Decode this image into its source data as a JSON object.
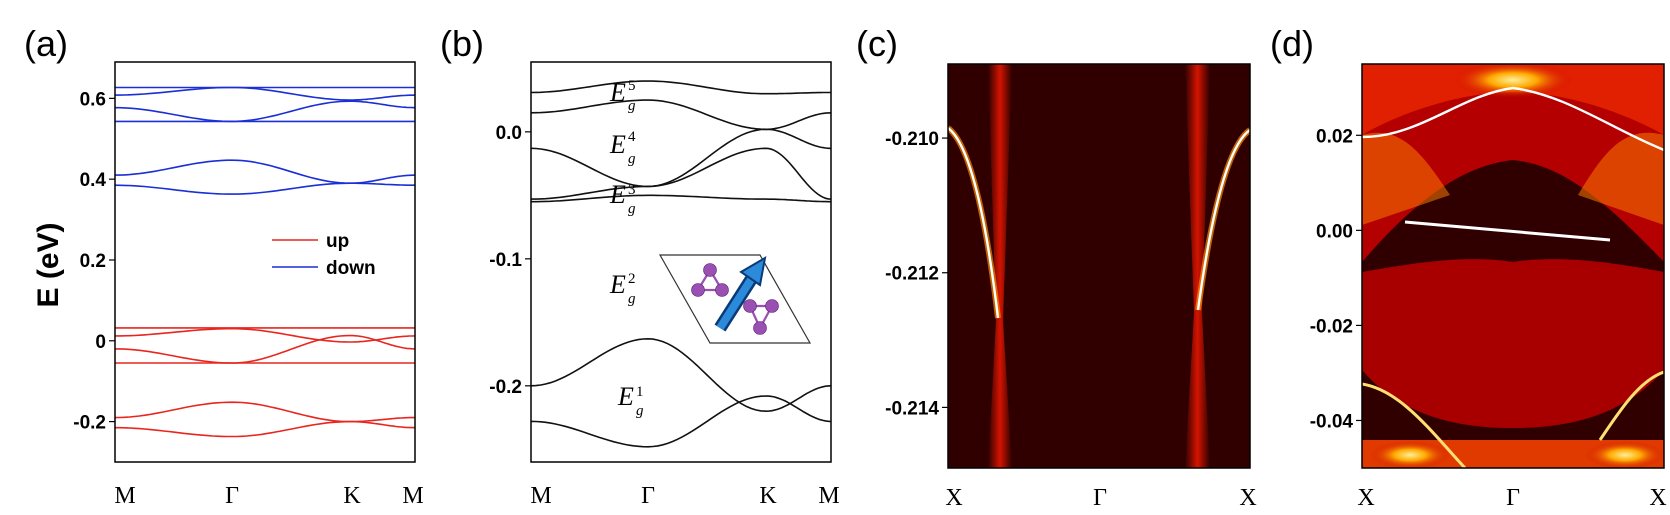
{
  "panels": {
    "a": {
      "label": "(a)"
    },
    "b": {
      "label": "(b)"
    },
    "c": {
      "label": "(c)"
    },
    "d": {
      "label": "(d)"
    }
  },
  "colors": {
    "up": "#e8261f",
    "down": "#1a2fd6",
    "black": "#111111",
    "heat_bg": "#300000",
    "heat_mid": "#c20000",
    "heat_hot": "#ffb000",
    "heat_white": "#fff8d0",
    "atom": "#9a4fb3",
    "arrow": "#1565c0"
  },
  "chart_data": [
    {
      "type": "line",
      "panel": "a",
      "ylabel": "E (eV)",
      "ylim": [
        -0.3,
        0.69
      ],
      "yticks": [
        -0.2,
        0,
        0.2,
        0.4,
        0.6
      ],
      "ytick_labels": [
        "-0.2",
        "0",
        "0.2",
        "0.4",
        "0.6"
      ],
      "xtick_labels": [
        "M",
        "Γ",
        "K",
        "M"
      ],
      "legend": {
        "position": "center-right",
        "entries": [
          "up",
          "down"
        ]
      },
      "series": [
        {
          "name": "up",
          "bands": [
            {
              "shape": "flat",
              "at": 0.032
            },
            {
              "shape": "flat",
              "at": -0.055
            },
            {
              "shape": "cos_gamma",
              "m": 0.012,
              "gamma": 0.03,
              "k": -0.003
            },
            {
              "shape": "cos_gamma",
              "m": -0.02,
              "gamma": -0.055,
              "k": 0.013
            },
            {
              "shape": "cos_gamma",
              "m": -0.19,
              "gamma": -0.152,
              "k": -0.2
            },
            {
              "shape": "cos_gamma",
              "m": -0.215,
              "gamma": -0.237,
              "k": -0.2
            }
          ]
        },
        {
          "name": "down",
          "bands": [
            {
              "shape": "flat",
              "at": 0.627
            },
            {
              "shape": "flat",
              "at": 0.543
            },
            {
              "shape": "cos_gamma",
              "m": 0.608,
              "gamma": 0.627,
              "k": 0.596
            },
            {
              "shape": "cos_gamma",
              "m": 0.577,
              "gamma": 0.543,
              "k": 0.593
            },
            {
              "shape": "cos_gamma",
              "m": 0.41,
              "gamma": 0.447,
              "k": 0.39
            },
            {
              "shape": "cos_gamma",
              "m": 0.385,
              "gamma": 0.363,
              "k": 0.39
            }
          ]
        }
      ]
    },
    {
      "type": "line",
      "panel": "b",
      "ylim": [
        -0.26,
        0.055
      ],
      "yticks": [
        -0.2,
        -0.1,
        0.0
      ],
      "ytick_labels": [
        "-0.2",
        "-0.1",
        "0.0"
      ],
      "xtick_labels": [
        "M",
        "Γ",
        "K",
        "M"
      ],
      "annotations": [
        {
          "base": "E",
          "sup": "1",
          "sub": "g"
        },
        {
          "base": "E",
          "sup": "2",
          "sub": "g"
        },
        {
          "base": "E",
          "sup": "3",
          "sub": "g"
        },
        {
          "base": "E",
          "sup": "4",
          "sub": "g"
        },
        {
          "base": "E",
          "sup": "5",
          "sub": "g"
        }
      ],
      "series": [
        {
          "bands": [
            {
              "m": 0.031,
              "gamma": 0.04,
              "k": 0.03
            },
            {
              "m": 0.015,
              "gamma": 0.025,
              "k": 0.002
            },
            {
              "m": -0.013,
              "gamma": -0.043,
              "k": 0.002
            },
            {
              "m": -0.053,
              "gamma": -0.043,
              "k": -0.013
            },
            {
              "m": -0.055,
              "gamma": -0.05,
              "k": -0.053
            },
            {
              "m": -0.2,
              "gamma": -0.163,
              "k": -0.22
            },
            {
              "m": -0.228,
              "gamma": -0.248,
              "k": -0.208
            }
          ]
        }
      ]
    },
    {
      "type": "heatmap",
      "panel": "c",
      "ylim": [
        -0.2149,
        -0.2089
      ],
      "yticks": [
        -0.21,
        -0.212,
        -0.214
      ],
      "ytick_labels": [
        "-0.210",
        "-0.212",
        "-0.214"
      ],
      "xtick_labels": [
        "X",
        "Γ",
        "X"
      ]
    },
    {
      "type": "heatmap",
      "panel": "d",
      "ylim": [
        -0.05,
        0.035
      ],
      "yticks": [
        0.02,
        0.0,
        -0.02,
        -0.04
      ],
      "ytick_labels": [
        "0.02",
        "0.00",
        "-0.02",
        "-0.04"
      ],
      "xtick_labels": [
        "X",
        "Γ",
        "X"
      ]
    }
  ]
}
